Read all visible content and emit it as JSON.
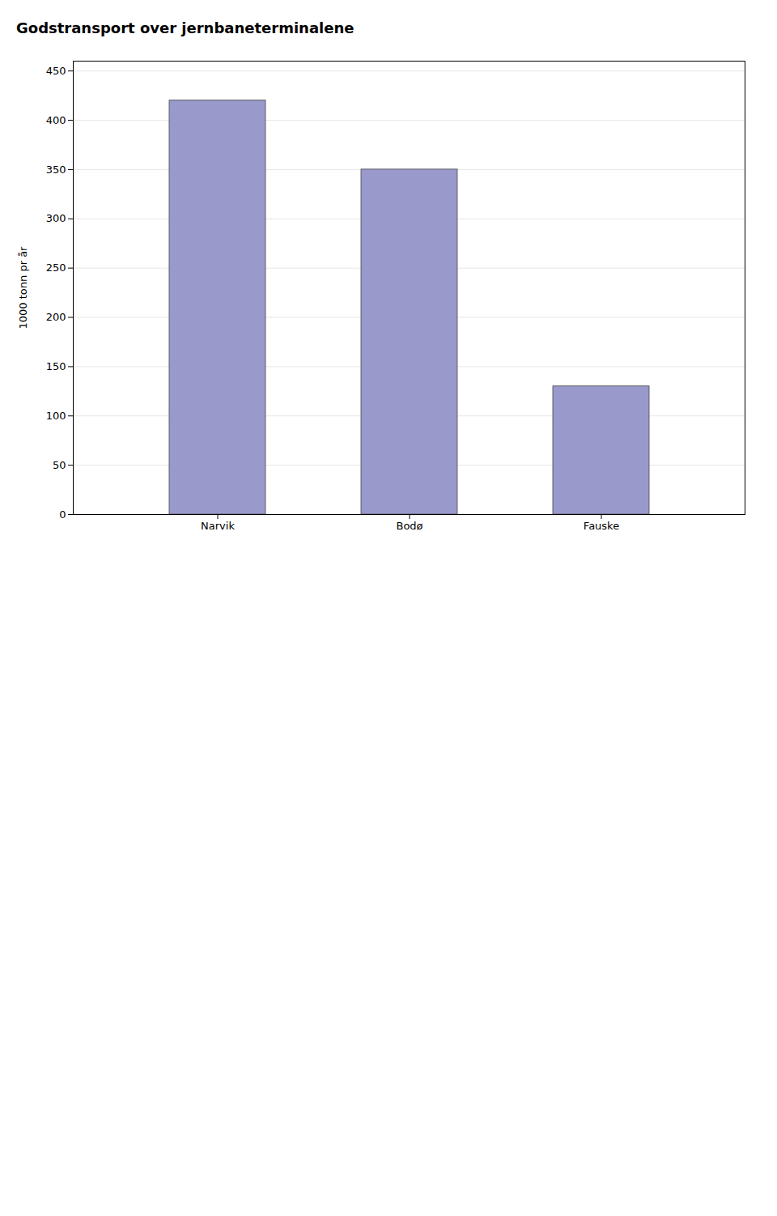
{
  "chart_data": {
    "type": "bar",
    "title": "Godstransport over jernbaneterminalene",
    "categories": [
      "Narvik",
      "Bodø",
      "Fauske"
    ],
    "values": [
      420,
      350,
      130
    ],
    "color": "#9999cc",
    "ylabel": "1000 tonn pr år",
    "ylim": [
      0,
      460
    ],
    "yticks": [
      0,
      50,
      100,
      150,
      200,
      250,
      300,
      350,
      400,
      450
    ],
    "grid": true
  }
}
